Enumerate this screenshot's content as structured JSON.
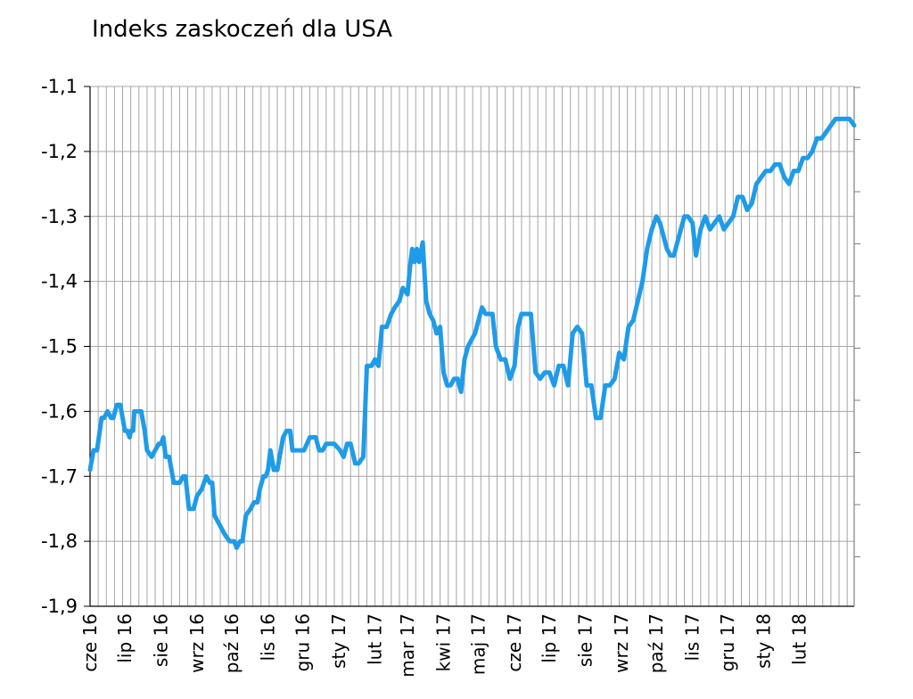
{
  "chart_data": {
    "type": "line",
    "title": "Indeks zaskoczeń dla USA",
    "xlabel": "",
    "ylabel": "",
    "ylim": [
      -1.9,
      -1.1
    ],
    "yticks": [
      -1.1,
      -1.2,
      -1.3,
      -1.4,
      -1.5,
      -1.6,
      -1.7,
      -1.8,
      -1.9
    ],
    "ytick_labels": [
      "-1,1",
      "-1,2",
      "-1,3",
      "-1,4",
      "-1,5",
      "-1,6",
      "-1,7",
      "-1,8",
      "-1,9"
    ],
    "x_range": [
      "2016-06-01",
      "2018-03-20"
    ],
    "x_tick_labels": [
      {
        "date": "2016-06-01",
        "label": "cze 16"
      },
      {
        "date": "2016-07-01",
        "label": "lip 16"
      },
      {
        "date": "2016-08-01",
        "label": "sie 16"
      },
      {
        "date": "2016-09-01",
        "label": "wrz 16"
      },
      {
        "date": "2016-10-01",
        "label": "paź 16"
      },
      {
        "date": "2016-11-01",
        "label": "lis 16"
      },
      {
        "date": "2016-12-01",
        "label": "gru 16"
      },
      {
        "date": "2017-01-01",
        "label": "sty 17"
      },
      {
        "date": "2017-02-01",
        "label": "lut 17"
      },
      {
        "date": "2017-03-01",
        "label": "mar 17"
      },
      {
        "date": "2017-04-01",
        "label": "kwi 17"
      },
      {
        "date": "2017-05-01",
        "label": "maj 17"
      },
      {
        "date": "2017-06-01",
        "label": "cze 17"
      },
      {
        "date": "2017-07-01",
        "label": "lip 17"
      },
      {
        "date": "2017-08-01",
        "label": "sie 17"
      },
      {
        "date": "2017-09-01",
        "label": "wrz 17"
      },
      {
        "date": "2017-10-01",
        "label": "paź 17"
      },
      {
        "date": "2017-11-01",
        "label": "lis 17"
      },
      {
        "date": "2017-12-01",
        "label": "gru 17"
      },
      {
        "date": "2018-01-01",
        "label": "sty 18"
      },
      {
        "date": "2018-02-01",
        "label": "lut 18"
      }
    ],
    "grid": "vertical weekly lines and horizontal lines at each y tick",
    "legend": "none",
    "series_color": "#1e9be9",
    "series": [
      {
        "x": [
          "2016-06-01",
          "2016-06-04",
          "2016-06-07",
          "2016-06-11",
          "2016-06-13",
          "2016-06-16",
          "2016-06-19",
          "2016-06-21",
          "2016-06-24",
          "2016-06-27",
          "2016-07-01",
          "2016-07-03",
          "2016-07-05",
          "2016-07-06",
          "2016-07-08",
          "2016-07-09",
          "2016-07-12",
          "2016-07-15",
          "2016-07-18",
          "2016-07-20",
          "2016-07-24",
          "2016-07-27",
          "2016-07-30",
          "2016-08-01",
          "2016-08-03",
          "2016-08-05",
          "2016-08-08",
          "2016-08-12",
          "2016-08-15",
          "2016-08-17",
          "2016-08-20",
          "2016-08-22",
          "2016-08-25",
          "2016-08-29",
          "2016-09-01",
          "2016-09-05",
          "2016-09-09",
          "2016-09-12",
          "2016-09-14",
          "2016-09-16",
          "2016-09-19",
          "2016-09-22",
          "2016-09-25",
          "2016-09-29",
          "2016-10-03",
          "2016-10-05",
          "2016-10-08",
          "2016-10-10",
          "2016-10-13",
          "2016-10-17",
          "2016-10-20",
          "2016-10-23",
          "2016-10-25",
          "2016-10-28",
          "2016-10-30",
          "2016-11-01",
          "2016-11-03",
          "2016-11-06",
          "2016-11-09",
          "2016-11-11",
          "2016-11-14",
          "2016-11-17",
          "2016-11-20",
          "2016-11-22",
          "2016-11-26",
          "2016-11-29",
          "2016-12-02",
          "2016-12-07",
          "2016-12-12",
          "2016-12-15",
          "2016-12-18",
          "2016-12-21",
          "2016-12-25",
          "2016-12-28",
          "2017-01-02",
          "2017-01-05",
          "2017-01-08",
          "2017-01-11",
          "2017-01-15",
          "2017-01-18",
          "2017-01-22",
          "2017-01-25",
          "2017-01-27",
          "2017-01-29",
          "2017-02-01",
          "2017-02-04",
          "2017-02-07",
          "2017-02-11",
          "2017-02-15",
          "2017-02-18",
          "2017-02-22",
          "2017-02-25",
          "2017-03-01",
          "2017-03-03",
          "2017-03-05",
          "2017-03-07",
          "2017-03-09",
          "2017-03-11",
          "2017-03-14",
          "2017-03-17",
          "2017-03-20",
          "2017-03-23",
          "2017-03-26",
          "2017-03-29",
          "2017-04-01",
          "2017-04-04",
          "2017-04-07",
          "2017-04-10",
          "2017-04-13",
          "2017-04-16",
          "2017-04-19",
          "2017-04-22",
          "2017-04-25",
          "2017-04-28",
          "2017-05-01",
          "2017-05-04",
          "2017-05-07",
          "2017-05-10",
          "2017-05-13",
          "2017-05-16",
          "2017-05-20",
          "2017-05-24",
          "2017-05-28",
          "2017-06-01",
          "2017-06-04",
          "2017-06-07",
          "2017-06-10",
          "2017-06-15",
          "2017-06-19",
          "2017-06-23",
          "2017-06-27",
          "2017-07-01",
          "2017-07-05",
          "2017-07-09",
          "2017-07-13",
          "2017-07-17",
          "2017-07-21",
          "2017-07-25",
          "2017-07-29",
          "2017-08-02",
          "2017-08-06",
          "2017-08-10",
          "2017-08-14",
          "2017-08-18",
          "2017-08-22",
          "2017-08-26",
          "2017-08-30",
          "2017-09-03",
          "2017-09-07",
          "2017-09-11",
          "2017-09-15",
          "2017-09-19",
          "2017-09-23",
          "2017-09-27",
          "2017-10-01",
          "2017-10-04",
          "2017-10-07",
          "2017-10-10",
          "2017-10-13",
          "2017-10-16",
          "2017-10-19",
          "2017-10-22",
          "2017-10-25",
          "2017-10-28",
          "2017-11-01",
          "2017-11-04",
          "2017-11-08",
          "2017-11-12",
          "2017-11-16",
          "2017-11-20",
          "2017-11-24",
          "2017-11-28",
          "2017-12-02",
          "2017-12-06",
          "2017-12-10",
          "2017-12-14",
          "2017-12-18",
          "2017-12-22",
          "2017-12-26",
          "2017-12-30",
          "2018-01-03",
          "2018-01-07",
          "2018-01-11",
          "2018-01-15",
          "2018-01-19",
          "2018-01-23",
          "2018-01-27",
          "2018-01-31",
          "2018-02-04",
          "2018-02-08",
          "2018-02-12",
          "2018-02-16",
          "2018-02-20",
          "2018-02-24",
          "2018-02-28",
          "2018-03-04",
          "2018-03-08",
          "2018-03-12",
          "2018-03-16",
          "2018-03-20"
        ],
        "y": [
          -1.69,
          -1.66,
          -1.66,
          -1.61,
          -1.61,
          -1.6,
          -1.61,
          -1.61,
          -1.59,
          -1.59,
          -1.63,
          -1.63,
          -1.64,
          -1.63,
          -1.63,
          -1.6,
          -1.6,
          -1.6,
          -1.63,
          -1.66,
          -1.67,
          -1.66,
          -1.65,
          -1.65,
          -1.64,
          -1.67,
          -1.67,
          -1.71,
          -1.71,
          -1.71,
          -1.7,
          -1.7,
          -1.75,
          -1.75,
          -1.73,
          -1.72,
          -1.7,
          -1.71,
          -1.71,
          -1.76,
          -1.77,
          -1.78,
          -1.79,
          -1.8,
          -1.8,
          -1.81,
          -1.8,
          -1.8,
          -1.76,
          -1.75,
          -1.74,
          -1.74,
          -1.72,
          -1.7,
          -1.7,
          -1.69,
          -1.66,
          -1.69,
          -1.69,
          -1.67,
          -1.64,
          -1.63,
          -1.63,
          -1.66,
          -1.66,
          -1.66,
          -1.66,
          -1.64,
          -1.64,
          -1.66,
          -1.66,
          -1.65,
          -1.65,
          -1.65,
          -1.66,
          -1.67,
          -1.65,
          -1.65,
          -1.68,
          -1.68,
          -1.67,
          -1.53,
          -1.53,
          -1.53,
          -1.52,
          -1.53,
          -1.47,
          -1.47,
          -1.45,
          -1.44,
          -1.43,
          -1.41,
          -1.42,
          -1.38,
          -1.35,
          -1.37,
          -1.35,
          -1.37,
          -1.34,
          -1.43,
          -1.45,
          -1.46,
          -1.48,
          -1.47,
          -1.54,
          -1.56,
          -1.56,
          -1.55,
          -1.55,
          -1.57,
          -1.52,
          -1.5,
          -1.49,
          -1.48,
          -1.46,
          -1.44,
          -1.45,
          -1.45,
          -1.45,
          -1.5,
          -1.52,
          -1.52,
          -1.55,
          -1.53,
          -1.47,
          -1.45,
          -1.45,
          -1.45,
          -1.54,
          -1.55,
          -1.54,
          -1.54,
          -1.56,
          -1.53,
          -1.53,
          -1.56,
          -1.48,
          -1.47,
          -1.48,
          -1.56,
          -1.56,
          -1.61,
          -1.61,
          -1.56,
          -1.56,
          -1.55,
          -1.51,
          -1.52,
          -1.47,
          -1.46,
          -1.43,
          -1.4,
          -1.35,
          -1.32,
          -1.3,
          -1.31,
          -1.33,
          -1.35,
          -1.36,
          -1.36,
          -1.34,
          -1.32,
          -1.3,
          -1.3,
          -1.31,
          -1.36,
          -1.32,
          -1.3,
          -1.32,
          -1.31,
          -1.3,
          -1.32,
          -1.31,
          -1.3,
          -1.27,
          -1.27,
          -1.29,
          -1.28,
          -1.25,
          -1.24,
          -1.23,
          -1.23,
          -1.22,
          -1.22,
          -1.24,
          -1.25,
          -1.23,
          -1.23,
          -1.21,
          -1.21,
          -1.2,
          -1.18,
          -1.18,
          -1.17,
          -1.16,
          -1.15,
          -1.15,
          -1.15,
          -1.15,
          -1.16
        ]
      }
    ]
  }
}
